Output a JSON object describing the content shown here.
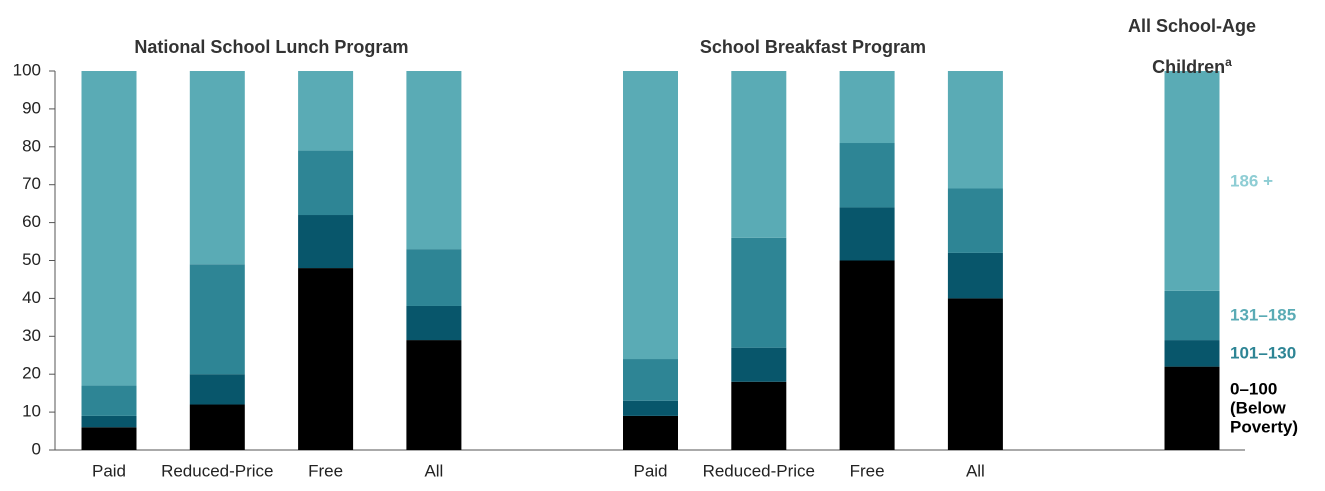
{
  "chart_data": {
    "type": "stacked_bar",
    "groups": [
      {
        "label": "National School Lunch Program",
        "categories": [
          "Paid",
          "Reduced-Price",
          "Free",
          "All"
        ]
      },
      {
        "label": "School Breakfast Program",
        "categories": [
          "Paid",
          "Reduced-Price",
          "Free",
          "All"
        ]
      },
      {
        "label": "All School-Age Children",
        "label_note": "a",
        "categories": [
          null
        ]
      }
    ],
    "series": [
      {
        "name": "0–100 (Below Poverty)",
        "color": "#000000",
        "label_color": "#000000",
        "values": [
          6,
          12,
          48,
          29,
          9,
          18,
          50,
          40,
          22
        ]
      },
      {
        "name": "101–130",
        "color": "#08566b",
        "label_color": "#2e8595",
        "values": [
          3,
          8,
          14,
          9,
          4,
          9,
          14,
          12,
          7
        ]
      },
      {
        "name": "131–185",
        "color": "#2e8595",
        "label_color": "#5aabb5",
        "values": [
          8,
          29,
          17,
          15,
          11,
          29,
          17,
          17,
          13
        ]
      },
      {
        "name": "186 +",
        "color": "#5aabb5",
        "label_color": "#8ecdd4",
        "values": [
          83,
          51,
          21,
          47,
          76,
          44,
          19,
          31,
          58
        ]
      }
    ],
    "ylim": [
      0,
      100
    ],
    "yticks": [
      0,
      10,
      20,
      30,
      40,
      50,
      60,
      70,
      80,
      90,
      100
    ]
  }
}
